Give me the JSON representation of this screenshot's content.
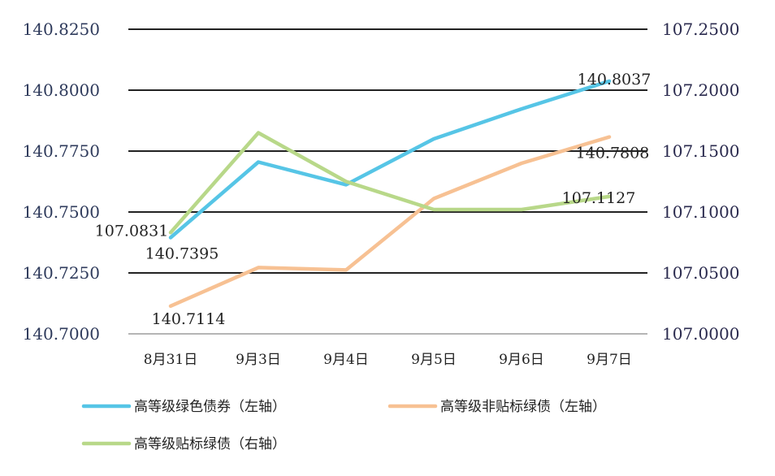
{
  "chart_data": {
    "type": "line",
    "categories": [
      "8月31日",
      "9月3日",
      "9月4日",
      "9月5日",
      "9月6日",
      "9月7日"
    ],
    "y_left": {
      "ylim": [
        140.7,
        140.825
      ],
      "ticks": [
        "140.8250",
        "140.8000",
        "140.7750",
        "140.7500",
        "140.7250",
        "140.7000"
      ],
      "tick_values": [
        140.825,
        140.8,
        140.775,
        140.75,
        140.725,
        140.7
      ]
    },
    "y_right": {
      "ylim": [
        107.0,
        107.25
      ],
      "ticks": [
        "107.2500",
        "107.2000",
        "107.1500",
        "107.1000",
        "107.0500",
        "107.0000"
      ],
      "tick_values": [
        107.25,
        107.2,
        107.15,
        107.1,
        107.05,
        107.0
      ]
    },
    "grid": true,
    "legend_position": "bottom",
    "series": [
      {
        "name": "高等级绿色债券（左轴）",
        "axis": "left",
        "color": "#56c5e6",
        "values": [
          140.7395,
          140.7705,
          140.7612,
          140.78,
          140.7923,
          140.8037
        ]
      },
      {
        "name": "高等级非贴标绿债（左轴）",
        "axis": "left",
        "color": "#f7c193",
        "values": [
          140.7114,
          140.7272,
          140.7262,
          140.7555,
          140.77,
          140.7808
        ]
      },
      {
        "name": "高等级贴标绿债（右轴）",
        "axis": "right",
        "color": "#b8d889",
        "values": [
          107.0831,
          107.165,
          107.125,
          107.102,
          107.102,
          107.1127
        ]
      }
    ],
    "data_labels": [
      {
        "text": "107.0831",
        "series": 2,
        "point": 0
      },
      {
        "text": "140.7395",
        "series": 0,
        "point": 0
      },
      {
        "text": "140.7114",
        "series": 1,
        "point": 0
      },
      {
        "text": "140.8037",
        "series": 0,
        "point": 5
      },
      {
        "text": "140.7808",
        "series": 1,
        "point": 5
      },
      {
        "text": "107.1127",
        "series": 2,
        "point": 5
      }
    ]
  }
}
